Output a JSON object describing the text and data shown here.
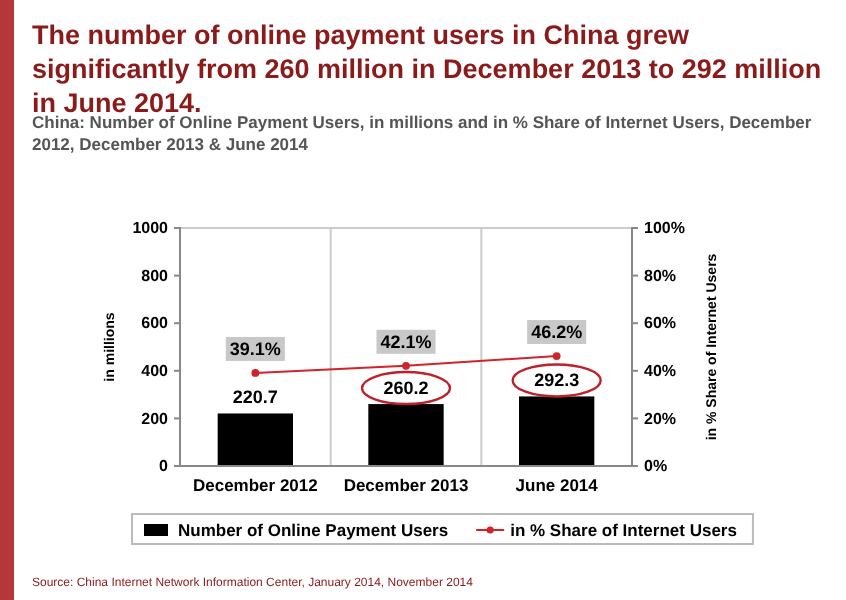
{
  "chart_data": {
    "type": "bar",
    "title": "The number of online payment users in China grew significantly from 260 million in December 2013 to 292 million in June 2014.",
    "subtitle": "China: Number of Online Payment Users, in millions and in % Share of Internet Users, December 2012, December 2013 & June 2014",
    "categories": [
      "December 2012",
      "December 2013",
      "June 2014"
    ],
    "series": [
      {
        "name": "Number of Online Payment Users",
        "color": "#000000",
        "values": [
          220.7,
          260.2,
          292.3
        ]
      },
      {
        "name": "in % Share of Internet Users",
        "type": "line",
        "axis": "y2",
        "color": "#d0232a",
        "values": [
          39.1,
          42.1,
          46.2
        ],
        "value_labels": [
          "39.1%",
          "42.1%",
          "46.2%"
        ]
      }
    ],
    "ylabel": "in millions",
    "y2label": "in % Share of Internet Users",
    "ylim": [
      0,
      1000
    ],
    "yticks": [
      0,
      200,
      400,
      600,
      800,
      1000
    ],
    "y2lim": [
      0,
      100
    ],
    "y2ticks": [
      {
        "value": 0,
        "label": "0%"
      },
      {
        "value": 20,
        "label": "20%"
      },
      {
        "value": 40,
        "label": "40%"
      },
      {
        "value": 60,
        "label": "60%"
      },
      {
        "value": 80,
        "label": "80%"
      },
      {
        "value": 100,
        "label": "100%"
      }
    ],
    "data_labels": true,
    "marker": "circle",
    "grid": "x",
    "legend": "bottom",
    "annotations": [
      "Source: China Internet Network Information Center, January 2014, November 2014"
    ]
  }
}
